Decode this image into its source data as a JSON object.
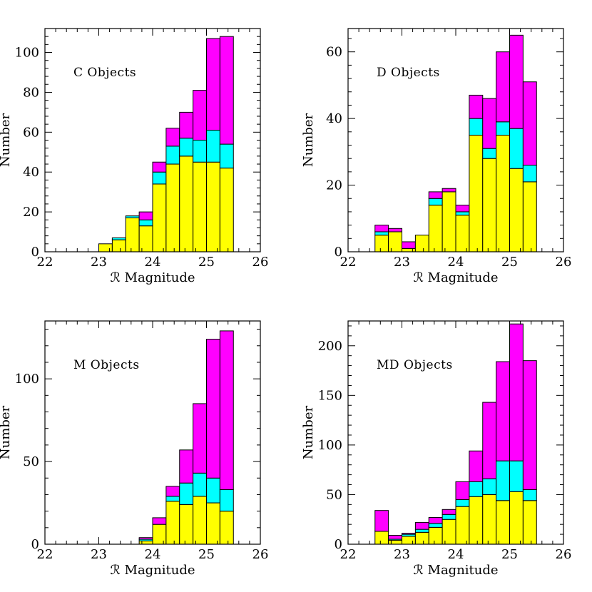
{
  "colors": {
    "yellow": "#ffff00",
    "cyan": "#00ffff",
    "magenta": "#ff00ff",
    "outline": "#000000"
  },
  "chart_data": [
    {
      "type": "bar",
      "stacked": true,
      "label": "C Objects",
      "xlabel": "ℛ Magnitude",
      "ylabel": "Number",
      "xlim": [
        22,
        26
      ],
      "ylim": [
        0,
        112
      ],
      "xticks": [
        22,
        23,
        24,
        25,
        26
      ],
      "yticks": [
        0,
        20,
        40,
        60,
        80,
        100
      ],
      "bin_width": 0.25,
      "bin_starts": [
        23.0,
        23.25,
        23.5,
        23.75,
        24.0,
        24.25,
        24.5,
        24.75,
        25.0,
        25.25
      ],
      "series": [
        {
          "color": "yellow",
          "values": [
            4,
            6,
            17,
            13,
            34,
            44,
            48,
            45,
            45,
            42
          ]
        },
        {
          "color": "cyan",
          "values": [
            0,
            1,
            1,
            3,
            6,
            9,
            9,
            11,
            16,
            12
          ]
        },
        {
          "color": "magenta",
          "values": [
            0,
            0,
            0,
            4,
            5,
            9,
            13,
            25,
            46,
            54
          ]
        }
      ]
    },
    {
      "type": "bar",
      "stacked": true,
      "label": "D Objects",
      "xlabel": "ℛ Magnitude",
      "ylabel": "Number",
      "xlim": [
        22,
        26
      ],
      "ylim": [
        0,
        67
      ],
      "xticks": [
        22,
        23,
        24,
        25,
        26
      ],
      "yticks": [
        0,
        20,
        40,
        60
      ],
      "bin_width": 0.25,
      "bin_starts": [
        22.5,
        22.75,
        23.0,
        23.25,
        23.5,
        23.75,
        24.0,
        24.25,
        24.5,
        24.75,
        25.0,
        25.25
      ],
      "series": [
        {
          "color": "yellow",
          "values": [
            5,
            6,
            1,
            5,
            14,
            18,
            11,
            35,
            28,
            35,
            25,
            21
          ]
        },
        {
          "color": "cyan",
          "values": [
            1,
            0,
            0,
            0,
            2,
            0,
            1,
            5,
            3,
            4,
            12,
            5
          ]
        },
        {
          "color": "magenta",
          "values": [
            2,
            1,
            2,
            0,
            2,
            1,
            2,
            7,
            15,
            21,
            28,
            25
          ]
        }
      ]
    },
    {
      "type": "bar",
      "stacked": true,
      "label": "M Objects",
      "xlabel": "ℛ Magnitude",
      "ylabel": "Number",
      "xlim": [
        22,
        26
      ],
      "ylim": [
        0,
        135
      ],
      "xticks": [
        22,
        23,
        24,
        25,
        26
      ],
      "yticks": [
        0,
        50,
        100
      ],
      "bin_width": 0.25,
      "bin_starts": [
        23.75,
        24.0,
        24.25,
        24.5,
        24.75,
        25.0,
        25.25
      ],
      "series": [
        {
          "color": "yellow",
          "values": [
            2,
            12,
            26,
            24,
            29,
            25,
            20
          ]
        },
        {
          "color": "cyan",
          "values": [
            1,
            0,
            3,
            13,
            14,
            15,
            13
          ]
        },
        {
          "color": "magenta",
          "values": [
            1,
            4,
            6,
            20,
            42,
            84,
            96
          ]
        }
      ]
    },
    {
      "type": "bar",
      "stacked": true,
      "label": "MD Objects",
      "xlabel": "ℛ Magnitude",
      "ylabel": "Number",
      "xlim": [
        22,
        26
      ],
      "ylim": [
        0,
        225
      ],
      "xticks": [
        22,
        23,
        24,
        25,
        26
      ],
      "yticks": [
        0,
        50,
        100,
        150,
        200
      ],
      "bin_width": 0.25,
      "bin_starts": [
        22.5,
        22.75,
        23.0,
        23.25,
        23.5,
        23.75,
        24.0,
        24.25,
        24.5,
        24.75,
        25.0,
        25.25
      ],
      "series": [
        {
          "color": "yellow",
          "values": [
            13,
            4,
            8,
            12,
            17,
            25,
            38,
            48,
            50,
            44,
            53,
            44
          ]
        },
        {
          "color": "cyan",
          "values": [
            0,
            1,
            2,
            3,
            4,
            5,
            7,
            15,
            16,
            40,
            31,
            11
          ]
        },
        {
          "color": "magenta",
          "values": [
            21,
            4,
            1,
            7,
            6,
            5,
            18,
            31,
            77,
            100,
            138,
            130
          ]
        }
      ]
    }
  ]
}
